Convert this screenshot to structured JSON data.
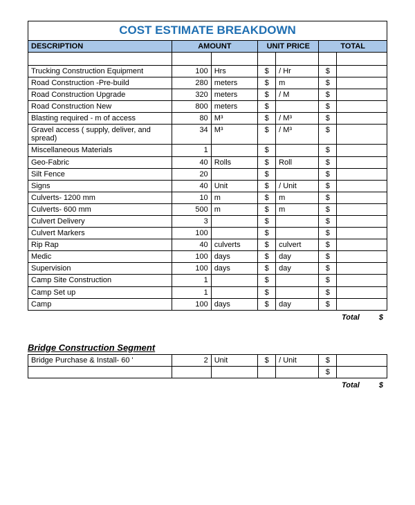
{
  "title": "COST ESTIMATE BREAKDOWN",
  "headers": {
    "description": "DESCRIPTION",
    "amount": "AMOUNT",
    "unit_price": "UNIT PRICE",
    "total": "TOTAL"
  },
  "colors": {
    "title_color": "#1f6fb2",
    "header_bg": "#a9c7e8",
    "border": "#000000",
    "background": "#ffffff"
  },
  "rows": [
    {
      "desc": "Trucking Construction Equipment",
      "qty": "100",
      "unit": "Hrs",
      "up_l": "$",
      "up_r": "/ Hr",
      "tot_l": "$",
      "tot_r": ""
    },
    {
      "desc": "Road Construction -Pre-build",
      "qty": "280",
      "unit": "meters",
      "up_l": "$",
      "up_r": "m",
      "tot_l": "$",
      "tot_r": ""
    },
    {
      "desc": "Road Construction Upgrade",
      "qty": "320",
      "unit": "meters",
      "up_l": "$",
      "up_r": "/ M",
      "tot_l": "$",
      "tot_r": ""
    },
    {
      "desc": "Road Construction New",
      "qty": "800",
      "unit": "meters",
      "up_l": "$",
      "up_r": "",
      "tot_l": "$",
      "tot_r": ""
    },
    {
      "desc": "Blasting required -  m of access",
      "qty": "80",
      "unit": "M³",
      "up_l": "$",
      "up_r": "/ M³",
      "tot_l": "$",
      "tot_r": ""
    },
    {
      "desc": "Gravel access ( supply, deliver, and spread)",
      "qty": "34",
      "unit": "M³",
      "up_l": "$",
      "up_r": "/ M³",
      "tot_l": "$",
      "tot_r": ""
    },
    {
      "desc": "Miscellaneous Materials",
      "qty": "1",
      "unit": "",
      "up_l": "$",
      "up_r": "",
      "tot_l": "$",
      "tot_r": ""
    },
    {
      "desc": "Geo-Fabric",
      "qty": "40",
      "unit": "Rolls",
      "up_l": "$",
      "up_r": "Roll",
      "tot_l": "$",
      "tot_r": ""
    },
    {
      "desc": "Silt Fence",
      "qty": "20",
      "unit": "",
      "up_l": "$",
      "up_r": "",
      "tot_l": "$",
      "tot_r": ""
    },
    {
      "desc": "Signs",
      "qty": "40",
      "unit": "Unit",
      "up_l": "$",
      "up_r": "/ Unit",
      "tot_l": "$",
      "tot_r": ""
    },
    {
      "desc": "Culverts- 1200 mm",
      "qty": "10",
      "unit": "m",
      "up_l": "$",
      "up_r": "m",
      "tot_l": "$",
      "tot_r": ""
    },
    {
      "desc": "Culverts- 600 mm",
      "qty": "500",
      "unit": "m",
      "up_l": "$",
      "up_r": "m",
      "tot_l": "$",
      "tot_r": ""
    },
    {
      "desc": "Culvert Delivery",
      "qty": "3",
      "unit": "",
      "up_l": "$",
      "up_r": "",
      "tot_l": "$",
      "tot_r": ""
    },
    {
      "desc": "Culvert Markers",
      "qty": "100",
      "unit": "",
      "up_l": "$",
      "up_r": "",
      "tot_l": "$",
      "tot_r": ""
    },
    {
      "desc": "Rip Rap",
      "qty": "40",
      "unit": "culverts",
      "up_l": "$",
      "up_r": "culvert",
      "tot_l": "$",
      "tot_r": ""
    },
    {
      "desc": "Medic",
      "qty": "100",
      "unit": "days",
      "up_l": "$",
      "up_r": "day",
      "tot_l": "$",
      "tot_r": ""
    },
    {
      "desc": "Supervision",
      "qty": "100",
      "unit": "days",
      "up_l": "$",
      "up_r": "day",
      "tot_l": "$",
      "tot_r": ""
    },
    {
      "desc": "Camp Site Construction",
      "qty": "1",
      "unit": "",
      "up_l": "$",
      "up_r": "",
      "tot_l": "$",
      "tot_r": ""
    },
    {
      "desc": "Camp Set up",
      "qty": "1",
      "unit": "",
      "up_l": "$",
      "up_r": "",
      "tot_l": "$",
      "tot_r": ""
    },
    {
      "desc": "Camp",
      "qty": "100",
      "unit": "days",
      "up_l": "$",
      "up_r": "day",
      "tot_l": "$",
      "tot_r": ""
    }
  ],
  "total": {
    "label": "Total",
    "symbol": "$"
  },
  "segment": {
    "title": "Bridge Construction Segment",
    "rows": [
      {
        "desc": "Bridge Purchase & Install- 60 '",
        "qty": "2",
        "unit": "Unit",
        "up_l": "$",
        "up_r": "/ Unit",
        "tot_l": "$",
        "tot_r": ""
      },
      {
        "desc": "",
        "qty": "",
        "unit": "",
        "up_l": "",
        "up_r": "",
        "tot_l": "$",
        "tot_r": ""
      }
    ],
    "total": {
      "label": "Total",
      "symbol": "$"
    }
  }
}
